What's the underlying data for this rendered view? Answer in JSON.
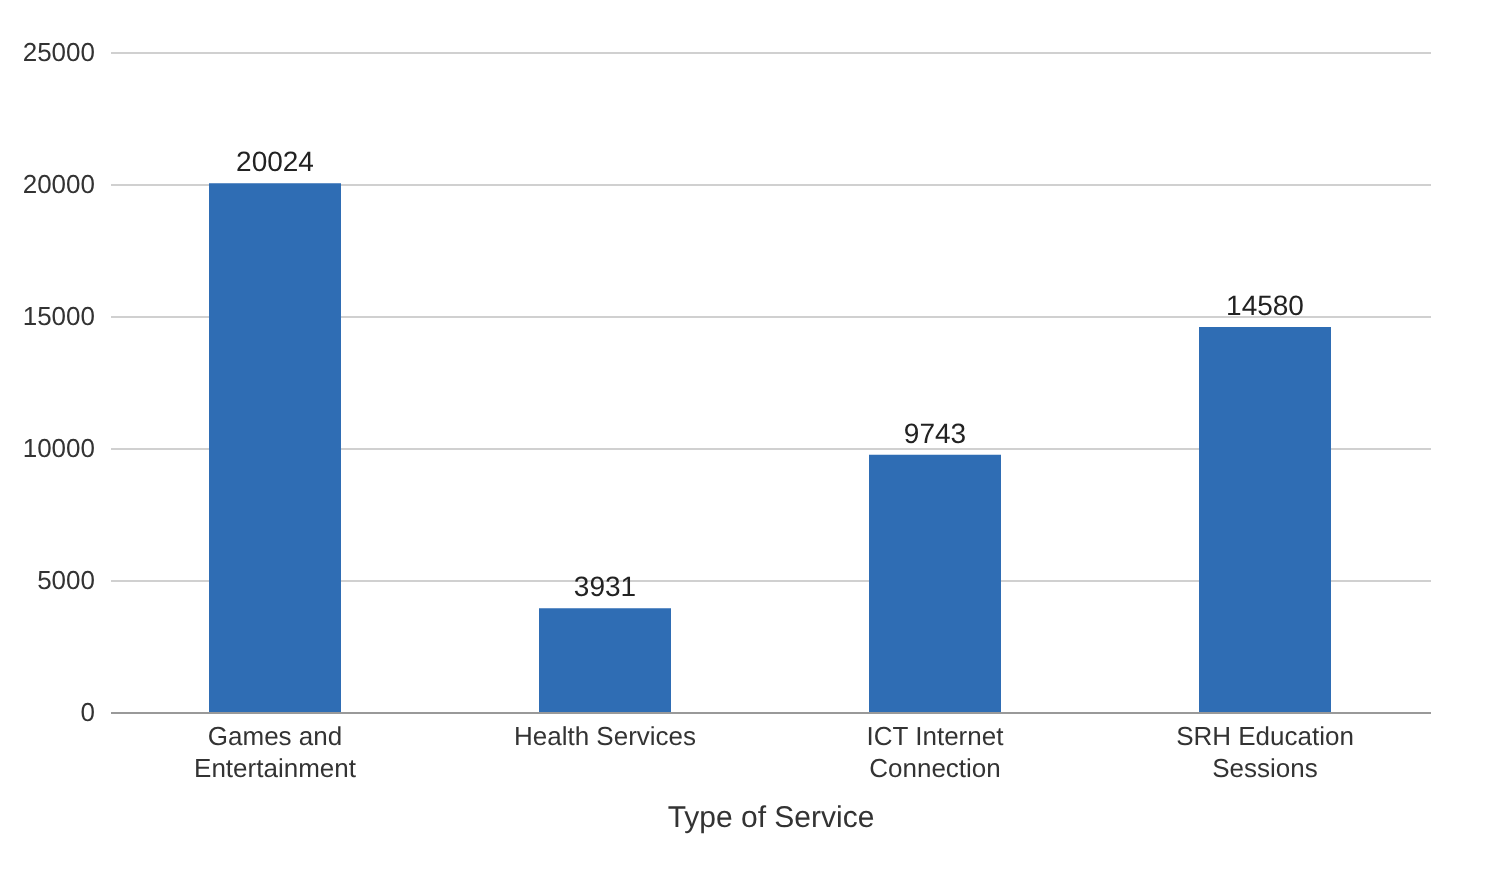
{
  "chart_data": {
    "type": "bar",
    "xlabel": "Type of Service",
    "categories": [
      "Games and Entertainment",
      "Health Services",
      "ICT Internet Connection",
      "SRH Education Sessions"
    ],
    "values": [
      20024,
      3931,
      9743,
      14580
    ],
    "color": "#2f6db4",
    "ylim": [
      0,
      25000
    ],
    "yticks": [
      0,
      5000,
      10000,
      15000,
      20000,
      25000
    ],
    "grid": "y",
    "data_labels": true
  }
}
